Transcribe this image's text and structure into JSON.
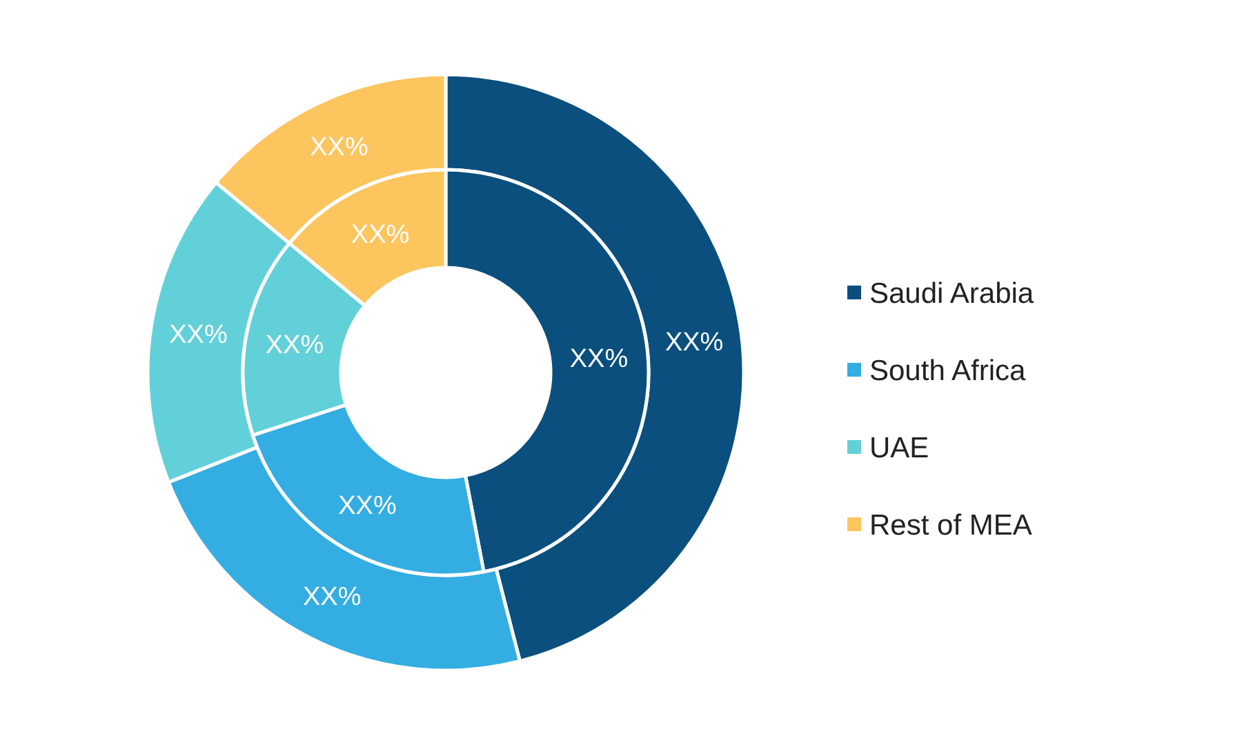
{
  "chart_data": {
    "type": "donut",
    "categories": [
      "Saudi Arabia",
      "South Africa",
      "UAE",
      "Rest of MEA"
    ],
    "colors": [
      "#0a4f7e",
      "#33ade2",
      "#62d0d9",
      "#fcc55e"
    ],
    "series": [
      {
        "values": [
          46,
          23,
          17,
          14
        ],
        "value_labels": [
          "XX%",
          "XX%",
          "XX%",
          "XX%"
        ]
      },
      {
        "values": [
          47,
          23,
          16,
          14
        ],
        "value_labels": [
          "XX%",
          "XX%",
          "XX%",
          "XX%"
        ]
      }
    ],
    "legend": "right"
  }
}
